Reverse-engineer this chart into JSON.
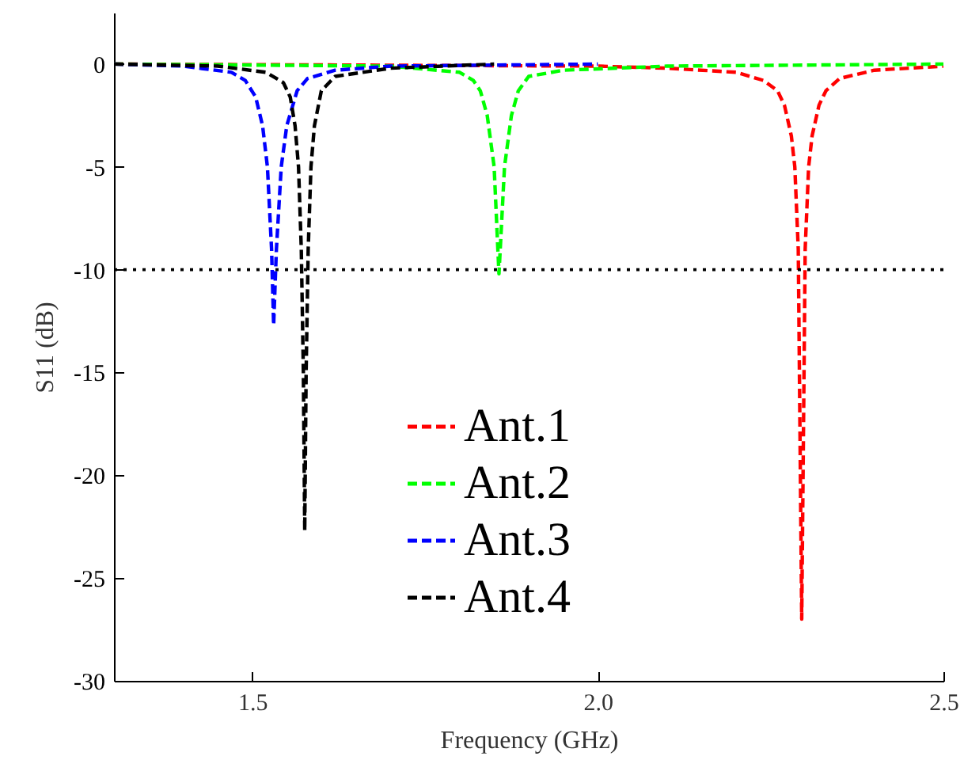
{
  "chart_data": {
    "type": "line",
    "xlabel": "Frequency (GHz)",
    "ylabel": "S11 (dB)",
    "xlim": [
      1.3,
      2.5
    ],
    "xticks": [
      1.5,
      {
        "value": 2,
        "label": "2.0"
      },
      2.5
    ],
    "ylim": [
      -30,
      2.5
    ],
    "yticks": [
      0,
      -5,
      -10,
      -15,
      -20,
      -25,
      -30
    ],
    "line_style": "dashed",
    "legend": "bottom",
    "grid": false,
    "ref_lines": [
      {
        "axis": "y",
        "value": -10,
        "color": "#000000",
        "line_style": "dotted"
      }
    ],
    "series": [
      {
        "name": "Ant.1",
        "color": "#ff0000",
        "x": [
          1.3,
          2.0,
          2.1,
          2.2,
          2.24,
          2.26,
          2.27,
          2.28,
          2.285,
          2.29,
          2.295,
          2.3,
          2.305,
          2.31,
          2.32,
          2.33,
          2.35,
          2.4,
          2.5
        ],
        "values": [
          0,
          -0.1,
          -0.2,
          -0.4,
          -0.8,
          -1.3,
          -2,
          -3.5,
          -5,
          -9,
          -27,
          -9,
          -5,
          -3.5,
          -2,
          -1.3,
          -0.7,
          -0.3,
          -0.1
        ]
      },
      {
        "name": "Ant.2",
        "color": "#00ff00",
        "x": [
          1.3,
          1.7,
          1.8,
          1.82,
          1.83,
          1.84,
          1.85,
          1.857,
          1.865,
          1.875,
          1.885,
          1.9,
          1.95,
          2.1,
          2.5
        ],
        "values": [
          0,
          -0.1,
          -0.4,
          -0.8,
          -1.3,
          -2.5,
          -5,
          -10.2,
          -5,
          -2.5,
          -1.3,
          -0.6,
          -0.3,
          -0.1,
          0
        ]
      },
      {
        "name": "Ant.3",
        "color": "#0000ff",
        "x": [
          1.3,
          1.4,
          1.47,
          1.49,
          1.505,
          1.515,
          1.522,
          1.528,
          1.531,
          1.535,
          1.542,
          1.55,
          1.565,
          1.58,
          1.62,
          1.7,
          2.0
        ],
        "values": [
          0,
          -0.1,
          -0.4,
          -0.8,
          -1.6,
          -3,
          -5,
          -9,
          -12.7,
          -9,
          -5,
          -3,
          -1.3,
          -0.7,
          -0.3,
          -0.1,
          0
        ]
      },
      {
        "name": "Ant.4",
        "color": "#000000",
        "x": [
          1.3,
          1.45,
          1.52,
          1.545,
          1.555,
          1.562,
          1.567,
          1.571,
          1.574,
          1.576,
          1.578,
          1.581,
          1.585,
          1.59,
          1.6,
          1.62,
          1.7,
          1.85
        ],
        "values": [
          0,
          -0.1,
          -0.4,
          -0.9,
          -1.6,
          -3,
          -5,
          -9,
          -15,
          -22.7,
          -15,
          -9,
          -5,
          -3,
          -1.3,
          -0.6,
          -0.2,
          0
        ]
      }
    ]
  }
}
